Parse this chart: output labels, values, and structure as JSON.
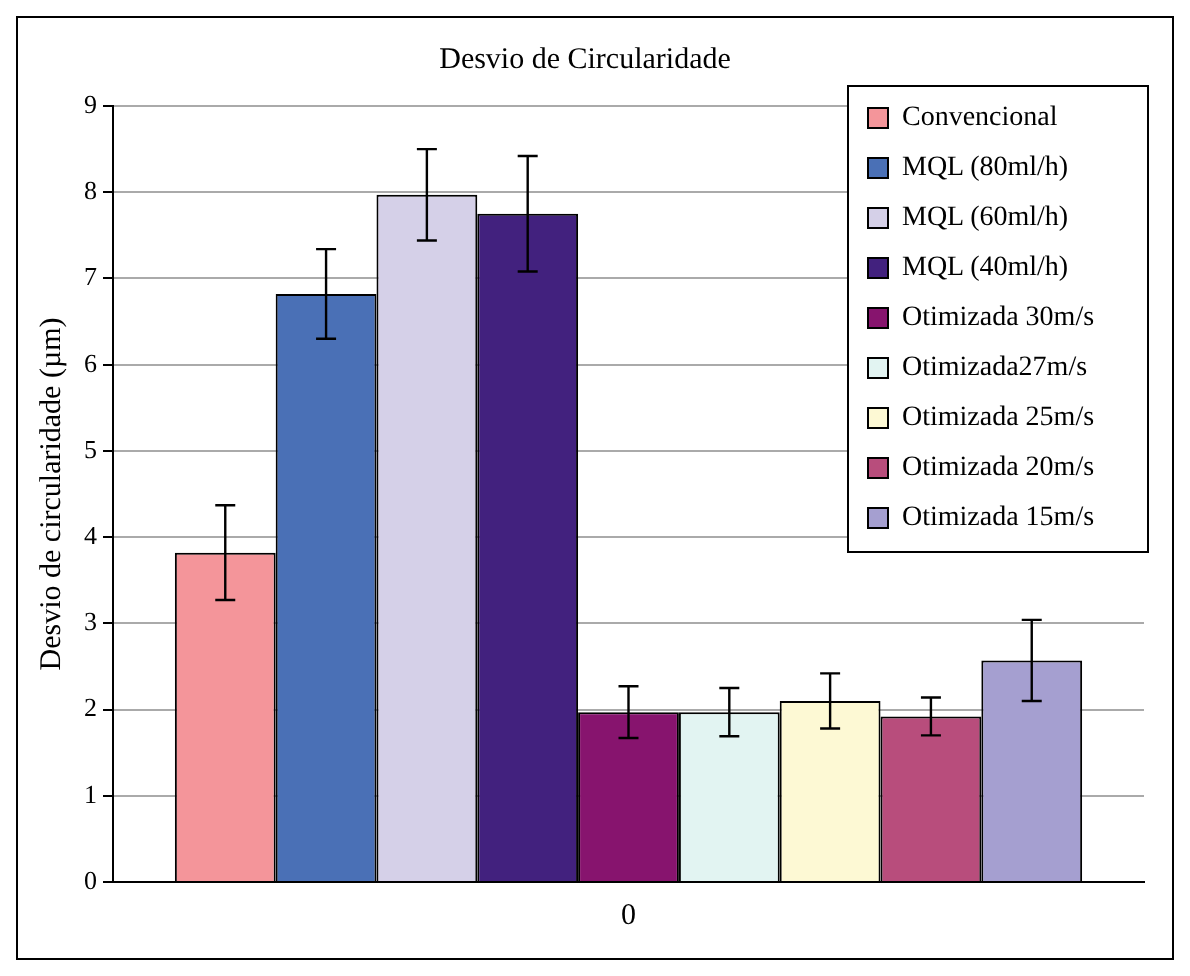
{
  "chart_data": {
    "type": "bar",
    "title": "Desvio de Circularidade",
    "ylabel": "Desvio de circularidade (µm)",
    "categories": [
      "0"
    ],
    "series": [
      {
        "name": "Convencional",
        "color": "#f4959a",
        "values": [
          3.82
        ],
        "errors": [
          0.55
        ]
      },
      {
        "name": "MQL (80ml/h)",
        "color": "#4a70b6",
        "values": [
          6.82
        ],
        "errors": [
          0.52
        ]
      },
      {
        "name": "MQL (60ml/h)",
        "color": "#d5d0e8",
        "values": [
          7.97
        ],
        "errors": [
          0.53
        ]
      },
      {
        "name": "MQL (40ml/h)",
        "color": "#42217e",
        "values": [
          7.75
        ],
        "errors": [
          0.67
        ]
      },
      {
        "name": "Otimizada 30m/s",
        "color": "#87146e",
        "values": [
          1.97
        ],
        "errors": [
          0.3
        ]
      },
      {
        "name": "Otimizada27m/s",
        "color": "#e2f4f2",
        "values": [
          1.97
        ],
        "errors": [
          0.28
        ]
      },
      {
        "name": "Otimizada 25m/s",
        "color": "#fdf9d4",
        "values": [
          2.1
        ],
        "errors": [
          0.32
        ]
      },
      {
        "name": "Otimizada 20m/s",
        "color": "#b84d7c",
        "values": [
          1.92
        ],
        "errors": [
          0.22
        ]
      },
      {
        "name": "Otimizada 15m/s",
        "color": "#a59fd0",
        "values": [
          2.57
        ],
        "errors": [
          0.47
        ]
      }
    ],
    "ylim": [
      0,
      9
    ],
    "yticks": [
      0,
      1,
      2,
      3,
      4,
      5,
      6,
      7,
      8,
      9
    ],
    "grid": "y",
    "legend": "top right"
  }
}
